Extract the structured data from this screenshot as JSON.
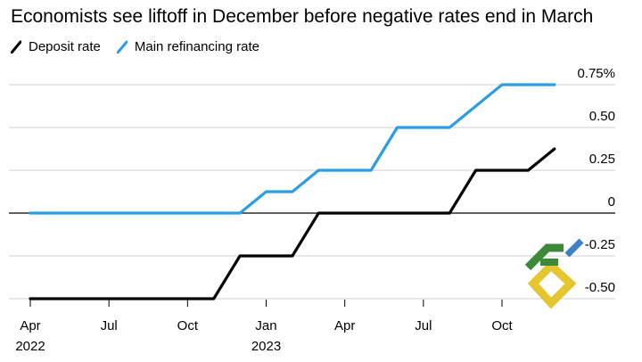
{
  "chart_data": {
    "type": "line",
    "title": "Economists see liftoff in December before negative rates end in March",
    "xlabel": "",
    "ylabel": "",
    "ylim": [
      -0.5,
      0.75
    ],
    "y_ticks": [
      {
        "value": 0.75,
        "label": "0.75%"
      },
      {
        "value": 0.5,
        "label": "0.50"
      },
      {
        "value": 0.25,
        "label": "0.25"
      },
      {
        "value": 0,
        "label": "0"
      },
      {
        "value": -0.25,
        "label": "-0.25"
      },
      {
        "value": -0.5,
        "label": "-0.50"
      }
    ],
    "x_ticks": [
      {
        "value": 0,
        "label": "Apr",
        "year": "2022"
      },
      {
        "value": 3,
        "label": "Jul",
        "year": ""
      },
      {
        "value": 6,
        "label": "Oct",
        "year": ""
      },
      {
        "value": 9,
        "label": "Jan",
        "year": "2023"
      },
      {
        "value": 12,
        "label": "Apr",
        "year": ""
      },
      {
        "value": 15,
        "label": "Jul",
        "year": ""
      },
      {
        "value": 18,
        "label": "Oct",
        "year": ""
      }
    ],
    "x_range": [
      -0.2,
      21.3
    ],
    "grid": true,
    "legend_position": "top-left",
    "series": [
      {
        "name": "Deposit rate",
        "color": "#000000",
        "x": [
          0,
          7,
          8,
          10,
          11,
          16,
          17,
          19,
          20
        ],
        "y": [
          -0.5,
          -0.5,
          -0.25,
          -0.25,
          0,
          0,
          0.25,
          0.25,
          0.375
        ]
      },
      {
        "name": "Main refinancing rate",
        "color": "#2b9ce6",
        "x": [
          0,
          8,
          9,
          10,
          11,
          13,
          14,
          16,
          18,
          20
        ],
        "y": [
          0,
          0,
          0.125,
          0.125,
          0.25,
          0.25,
          0.5,
          0.5,
          0.75,
          0.75
        ]
      }
    ]
  }
}
